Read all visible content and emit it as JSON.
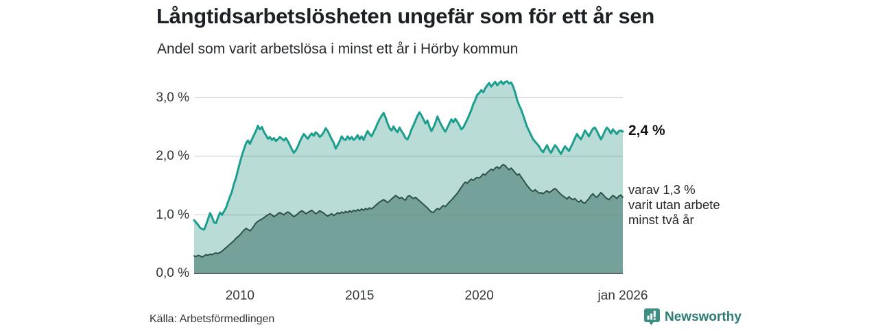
{
  "footer": {
    "brand": "Newsworthy"
  },
  "colors": {
    "background": "#ffffff",
    "gridline": "#dcdcdc",
    "baseline": "#3a4341",
    "title_text": "#1d2126",
    "axis_text": "#33383b",
    "brand_teal": "#2c7b72",
    "brand_icon": "#3e8e86"
  },
  "chart_data": {
    "type": "area",
    "title": "Långtidsarbetslösheten ungefär som för ett år sen",
    "subtitle": "Andel som varit arbetslösa i minst ett år i Hörby kommun",
    "source": "Källa: Arbetsförmedlingen",
    "x_domain": [
      2008.0833,
      2026.0
    ],
    "x_unit": "month",
    "ylim": [
      0,
      3.35
    ],
    "grid": true,
    "legend_position": "right-annotations",
    "y_ticks": [
      {
        "value": 0,
        "label": "0,0 %"
      },
      {
        "value": 1,
        "label": "1,0 %"
      },
      {
        "value": 2,
        "label": "2,0 %"
      },
      {
        "value": 3,
        "label": "3,0 %"
      }
    ],
    "x_ticks": [
      {
        "value": 2010,
        "label": "2010"
      },
      {
        "value": 2015,
        "label": "2015"
      },
      {
        "value": 2020,
        "label": "2020"
      },
      {
        "value": 2026,
        "label": "jan 2026"
      }
    ],
    "annotations": {
      "latest_total": "2,4 %",
      "latest_secondary": [
        "varav 1,3 %",
        "varit utan arbete",
        "minst två år"
      ]
    },
    "series": [
      {
        "name": "Andel arbetslösa minst ett år",
        "line_color": "#1b9e8e",
        "fill_color": "#b9dcd6",
        "line_width": 3,
        "latest_value": 2.4,
        "values": [
          0.91,
          0.87,
          0.83,
          0.78,
          0.76,
          0.75,
          0.83,
          0.93,
          1.03,
          0.96,
          0.87,
          0.86,
          0.96,
          1.04,
          1.0,
          1.06,
          1.12,
          1.22,
          1.31,
          1.4,
          1.53,
          1.63,
          1.77,
          1.9,
          2.02,
          2.12,
          2.22,
          2.27,
          2.21,
          2.29,
          2.36,
          2.43,
          2.52,
          2.46,
          2.5,
          2.42,
          2.36,
          2.3,
          2.33,
          2.28,
          2.31,
          2.26,
          2.29,
          2.33,
          2.3,
          2.27,
          2.31,
          2.26,
          2.19,
          2.12,
          2.06,
          2.1,
          2.17,
          2.25,
          2.32,
          2.38,
          2.34,
          2.3,
          2.35,
          2.39,
          2.35,
          2.41,
          2.38,
          2.33,
          2.36,
          2.41,
          2.48,
          2.43,
          2.36,
          2.29,
          2.23,
          2.13,
          2.19,
          2.26,
          2.34,
          2.29,
          2.28,
          2.34,
          2.29,
          2.33,
          2.28,
          2.31,
          2.36,
          2.29,
          2.34,
          2.28,
          2.36,
          2.43,
          2.38,
          2.34,
          2.41,
          2.48,
          2.56,
          2.63,
          2.69,
          2.74,
          2.66,
          2.56,
          2.48,
          2.44,
          2.51,
          2.45,
          2.41,
          2.49,
          2.43,
          2.38,
          2.31,
          2.29,
          2.36,
          2.46,
          2.53,
          2.61,
          2.69,
          2.75,
          2.7,
          2.63,
          2.56,
          2.61,
          2.51,
          2.43,
          2.49,
          2.57,
          2.68,
          2.6,
          2.53,
          2.47,
          2.42,
          2.49,
          2.56,
          2.63,
          2.58,
          2.64,
          2.59,
          2.53,
          2.46,
          2.49,
          2.56,
          2.63,
          2.71,
          2.79,
          2.89,
          2.96,
          3.05,
          3.08,
          3.13,
          3.09,
          3.16,
          3.21,
          3.25,
          3.19,
          3.23,
          3.27,
          3.21,
          3.25,
          3.28,
          3.23,
          3.27,
          3.28,
          3.24,
          3.26,
          3.19,
          3.09,
          2.96,
          2.87,
          2.8,
          2.7,
          2.6,
          2.5,
          2.43,
          2.36,
          2.29,
          2.25,
          2.21,
          2.17,
          2.11,
          2.07,
          2.13,
          2.19,
          2.11,
          2.06,
          2.13,
          2.19,
          2.15,
          2.09,
          2.04,
          2.11,
          2.17,
          2.13,
          2.09,
          2.16,
          2.23,
          2.31,
          2.38,
          2.33,
          2.29,
          2.36,
          2.44,
          2.39,
          2.34,
          2.41,
          2.47,
          2.49,
          2.43,
          2.36,
          2.29,
          2.35,
          2.43,
          2.49,
          2.45,
          2.39,
          2.46,
          2.42,
          2.38,
          2.43,
          2.44,
          2.42
        ]
      },
      {
        "name": "Varav utan arbete minst två år",
        "line_color": "#2d5149",
        "fill_color": "#74a29a",
        "line_width": 2,
        "latest_value": 1.3,
        "values": [
          0.3,
          0.29,
          0.31,
          0.3,
          0.28,
          0.3,
          0.32,
          0.31,
          0.33,
          0.32,
          0.34,
          0.35,
          0.34,
          0.36,
          0.38,
          0.41,
          0.44,
          0.47,
          0.5,
          0.53,
          0.56,
          0.6,
          0.63,
          0.66,
          0.7,
          0.74,
          0.77,
          0.75,
          0.73,
          0.76,
          0.81,
          0.86,
          0.89,
          0.91,
          0.93,
          0.95,
          0.98,
          1.0,
          1.02,
          1.0,
          0.97,
          0.99,
          1.02,
          1.04,
          1.02,
          1.0,
          1.03,
          1.05,
          1.03,
          1.0,
          0.97,
          0.99,
          1.02,
          1.05,
          1.07,
          1.05,
          1.02,
          1.04,
          1.06,
          1.08,
          1.05,
          1.02,
          1.04,
          1.07,
          1.05,
          1.03,
          1.0,
          0.98,
          1.0,
          1.02,
          0.99,
          1.01,
          1.04,
          1.02,
          1.05,
          1.03,
          1.06,
          1.04,
          1.07,
          1.05,
          1.08,
          1.06,
          1.09,
          1.07,
          1.1,
          1.08,
          1.11,
          1.09,
          1.12,
          1.1,
          1.13,
          1.16,
          1.19,
          1.22,
          1.24,
          1.26,
          1.24,
          1.21,
          1.24,
          1.27,
          1.3,
          1.33,
          1.31,
          1.28,
          1.3,
          1.27,
          1.25,
          1.31,
          1.33,
          1.3,
          1.28,
          1.3,
          1.27,
          1.24,
          1.21,
          1.18,
          1.15,
          1.12,
          1.08,
          1.05,
          1.04,
          1.08,
          1.11,
          1.09,
          1.13,
          1.16,
          1.14,
          1.18,
          1.22,
          1.25,
          1.29,
          1.33,
          1.37,
          1.42,
          1.47,
          1.52,
          1.56,
          1.54,
          1.58,
          1.61,
          1.59,
          1.62,
          1.64,
          1.63,
          1.66,
          1.7,
          1.68,
          1.72,
          1.75,
          1.78,
          1.76,
          1.8,
          1.82,
          1.79,
          1.83,
          1.86,
          1.84,
          1.8,
          1.77,
          1.8,
          1.76,
          1.72,
          1.68,
          1.7,
          1.65,
          1.6,
          1.55,
          1.5,
          1.46,
          1.42,
          1.4,
          1.43,
          1.4,
          1.37,
          1.38,
          1.36,
          1.39,
          1.41,
          1.38,
          1.4,
          1.43,
          1.45,
          1.42,
          1.38,
          1.35,
          1.32,
          1.3,
          1.27,
          1.31,
          1.28,
          1.26,
          1.28,
          1.24,
          1.22,
          1.25,
          1.21,
          1.2,
          1.24,
          1.28,
          1.33,
          1.36,
          1.32,
          1.3,
          1.34,
          1.38,
          1.35,
          1.31,
          1.28,
          1.26,
          1.3,
          1.33,
          1.31,
          1.28,
          1.32,
          1.34,
          1.3
        ]
      }
    ]
  }
}
